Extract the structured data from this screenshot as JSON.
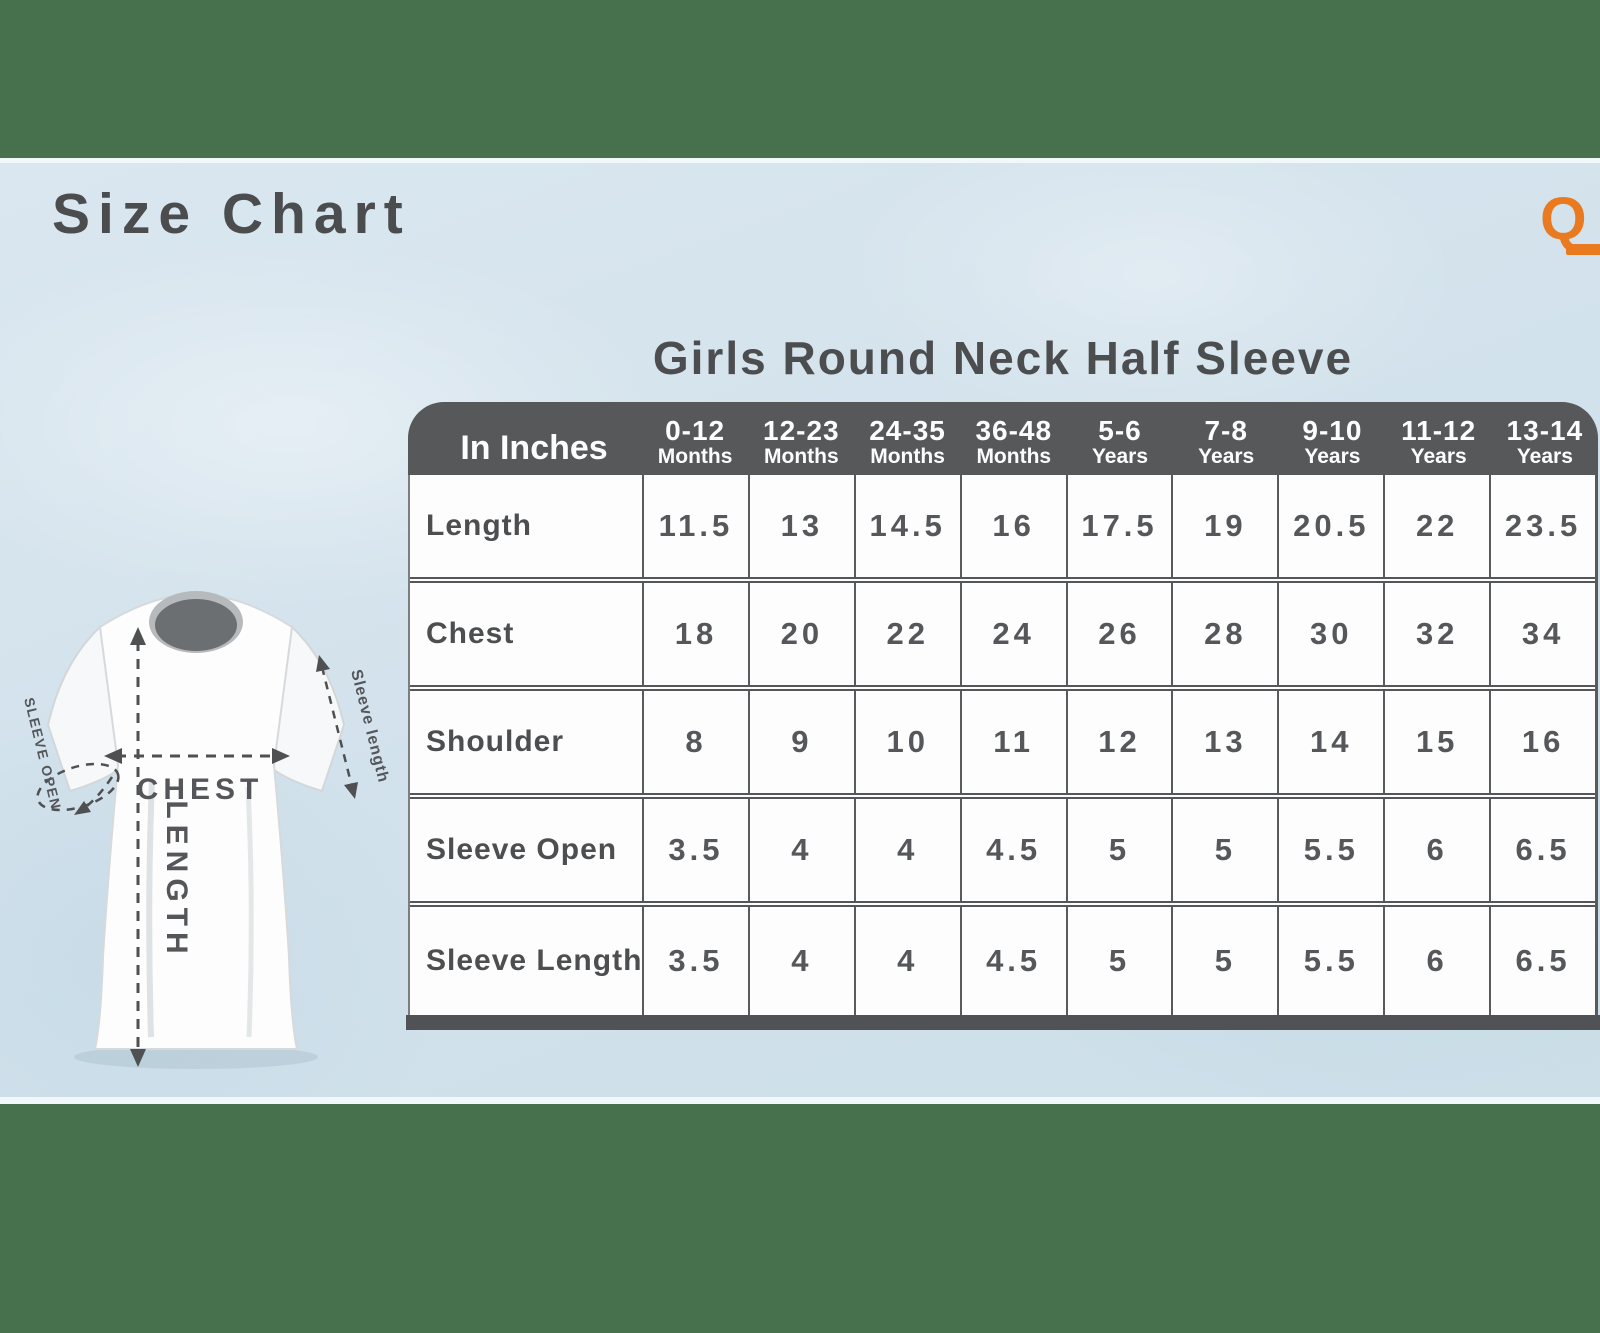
{
  "page": {
    "title": "Size Chart",
    "logo_letter": "Q"
  },
  "colors": {
    "band_green": "#47704d",
    "background_blue": "#d3e2ec",
    "table_header_gray": "#57585a",
    "logo_orange": "#ea7a20",
    "text_dark": "#4c4d4f"
  },
  "diagram": {
    "chest_label": "CHEST",
    "length_label": "LENGTH",
    "sleeve_open_label": "SLEEVE OPEN",
    "sleeve_length_label": "Sleeve length"
  },
  "table": {
    "title": "Girls Round Neck Half Sleeve",
    "unit_header": "In Inches",
    "columns": [
      {
        "range": "0-12",
        "unit": "Months"
      },
      {
        "range": "12-23",
        "unit": "Months"
      },
      {
        "range": "24-35",
        "unit": "Months"
      },
      {
        "range": "36-48",
        "unit": "Months"
      },
      {
        "range": "5-6",
        "unit": "Years"
      },
      {
        "range": "7-8",
        "unit": "Years"
      },
      {
        "range": "9-10",
        "unit": "Years"
      },
      {
        "range": "11-12",
        "unit": "Years"
      },
      {
        "range": "13-14",
        "unit": "Years"
      }
    ],
    "rows": [
      {
        "label": "Length",
        "values": [
          "11.5",
          "13",
          "14.5",
          "16",
          "17.5",
          "19",
          "20.5",
          "22",
          "23.5"
        ]
      },
      {
        "label": "Chest",
        "values": [
          "18",
          "20",
          "22",
          "24",
          "26",
          "28",
          "30",
          "32",
          "34"
        ]
      },
      {
        "label": "Shoulder",
        "values": [
          "8",
          "9",
          "10",
          "11",
          "12",
          "13",
          "14",
          "15",
          "16"
        ]
      },
      {
        "label": "Sleeve Open",
        "values": [
          "3.5",
          "4",
          "4",
          "4.5",
          "5",
          "5",
          "5.5",
          "6",
          "6.5"
        ]
      },
      {
        "label": "Sleeve Length",
        "values": [
          "3.5",
          "4",
          "4",
          "4.5",
          "5",
          "5",
          "5.5",
          "6",
          "6.5"
        ]
      }
    ]
  },
  "chart_data": {
    "type": "table",
    "title": "Girls Round Neck Half Sleeve",
    "unit": "In Inches",
    "categories": [
      "0-12 Months",
      "12-23 Months",
      "24-35 Months",
      "36-48 Months",
      "5-6 Years",
      "7-8 Years",
      "9-10 Years",
      "11-12 Years",
      "13-14 Years"
    ],
    "series": [
      {
        "name": "Length",
        "values": [
          11.5,
          13,
          14.5,
          16,
          17.5,
          19,
          20.5,
          22,
          23.5
        ]
      },
      {
        "name": "Chest",
        "values": [
          18,
          20,
          22,
          24,
          26,
          28,
          30,
          32,
          34
        ]
      },
      {
        "name": "Shoulder",
        "values": [
          8,
          9,
          10,
          11,
          12,
          13,
          14,
          15,
          16
        ]
      },
      {
        "name": "Sleeve Open",
        "values": [
          3.5,
          4,
          4,
          4.5,
          5,
          5,
          5.5,
          6,
          6.5
        ]
      },
      {
        "name": "Sleeve Length",
        "values": [
          3.5,
          4,
          4,
          4.5,
          5,
          5,
          5.5,
          6,
          6.5
        ]
      }
    ]
  }
}
